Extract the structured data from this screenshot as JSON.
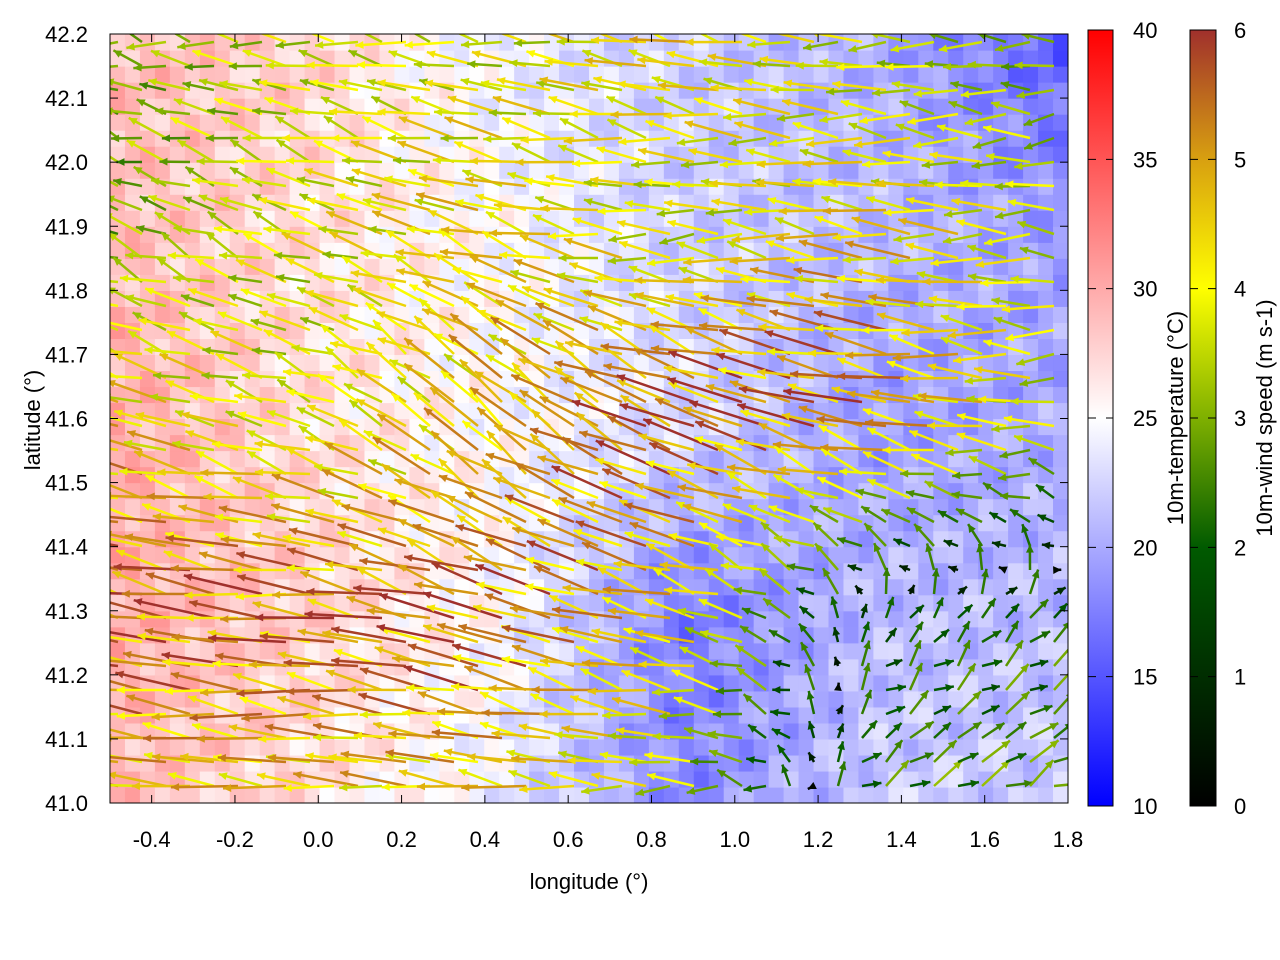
{
  "chart_data": {
    "type": "heatmap",
    "title": "",
    "xlabel": "longitude (°)",
    "ylabel": "latitude (°)",
    "xlim": [
      -0.5,
      1.8
    ],
    "ylim": [
      41.0,
      42.2
    ],
    "xticks": [
      "-0.4",
      "-0.2",
      "0.0",
      "0.2",
      "0.4",
      "0.6",
      "0.8",
      "1.0",
      "1.2",
      "1.4",
      "1.6",
      "1.8"
    ],
    "xtick_values": [
      -0.4,
      -0.2,
      0.0,
      0.2,
      0.4,
      0.6,
      0.8,
      1.0,
      1.2,
      1.4,
      1.6,
      1.8
    ],
    "yticks": [
      "41.0",
      "41.1",
      "41.2",
      "41.3",
      "41.4",
      "41.5",
      "41.6",
      "41.7",
      "41.8",
      "41.9",
      "42.0",
      "42.1",
      "42.2"
    ],
    "ytick_values": [
      41.0,
      41.1,
      41.2,
      41.3,
      41.4,
      41.5,
      41.6,
      41.7,
      41.8,
      41.9,
      42.0,
      42.1,
      42.2
    ],
    "temperature": {
      "label": "10m-temperature (°C)",
      "range": [
        10,
        40
      ],
      "ticks": [
        "10",
        "15",
        "20",
        "25",
        "30",
        "35",
        "40"
      ],
      "tick_values": [
        10,
        15,
        20,
        25,
        30,
        35,
        40
      ],
      "colors": [
        "#0000ff",
        "#ffffff",
        "#ff0000"
      ],
      "grid_lon": [
        -0.5,
        -0.04,
        0.42,
        0.88,
        1.34,
        1.8
      ],
      "grid_lat": [
        42.2,
        41.9,
        41.6,
        41.3,
        41.0
      ],
      "values": [
        [
          29,
          28,
          24,
          22,
          20,
          15
        ],
        [
          29,
          27,
          25,
          22,
          21,
          19
        ],
        [
          30,
          27,
          25,
          23,
          19,
          20
        ],
        [
          30,
          28,
          25,
          17,
          21,
          21
        ],
        [
          29,
          27,
          24,
          18,
          22,
          22
        ]
      ]
    },
    "wind": {
      "label": "10m-wind speed (m s-1)",
      "range": [
        0,
        6
      ],
      "ticks": [
        "0",
        "1",
        "2",
        "3",
        "4",
        "5",
        "6"
      ],
      "tick_values": [
        0,
        1,
        2,
        3,
        4,
        5,
        6
      ],
      "colors": [
        "#000000",
        "#005a00",
        "#7fb000",
        "#ffff00",
        "#d8a010",
        "#a0302c"
      ],
      "grid_lon": [
        -0.5,
        -0.04,
        0.42,
        0.88,
        1.34,
        1.8
      ],
      "grid_lat": [
        42.2,
        41.9,
        41.6,
        41.3,
        41.0
      ],
      "u": [
        [
          -2,
          -3,
          -3,
          -4,
          -3,
          -2
        ],
        [
          -2,
          -3,
          -4,
          -3,
          -4,
          -3
        ],
        [
          -4,
          -3,
          -3,
          -5,
          -5,
          -3
        ],
        [
          -5,
          -5,
          -5,
          -4,
          0.5,
          1
        ],
        [
          -4,
          -4,
          -4,
          -3,
          1.5,
          2
        ]
      ],
      "v": [
        [
          0.3,
          0.5,
          0.5,
          1,
          0,
          0
        ],
        [
          1,
          1,
          1,
          0,
          0.5,
          0
        ],
        [
          1,
          1,
          3,
          2,
          1,
          0
        ],
        [
          1,
          0.5,
          1.5,
          1,
          1,
          1
        ],
        [
          0.5,
          0.3,
          0.5,
          0,
          1,
          1
        ]
      ]
    }
  }
}
